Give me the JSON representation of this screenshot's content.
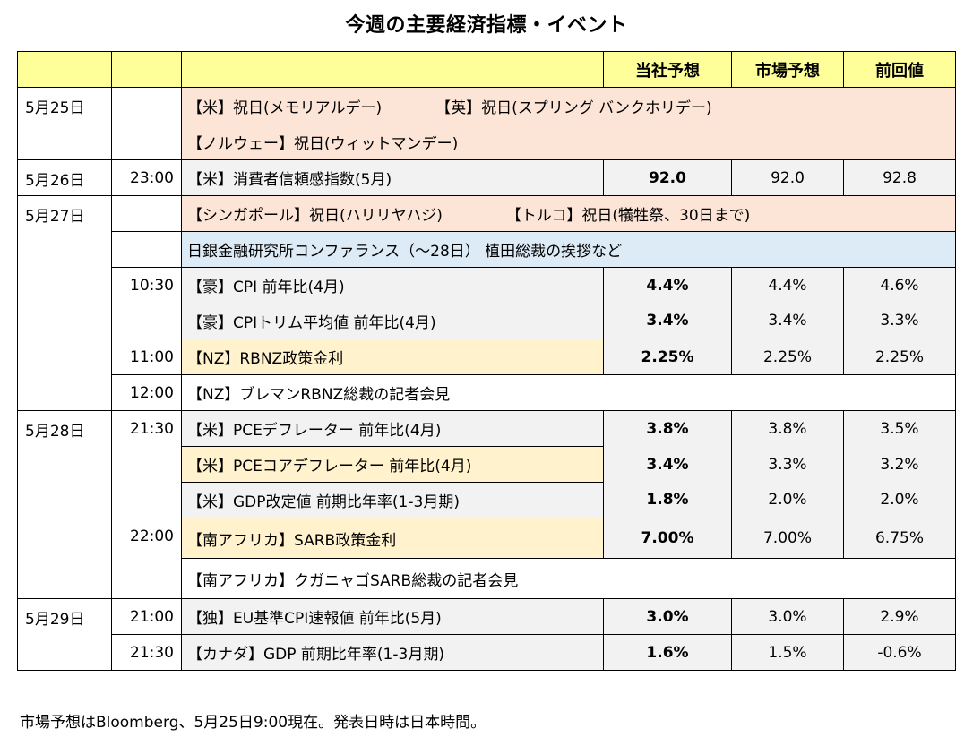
{
  "title": "今週の主要経済指標・イベント",
  "headers": [
    "",
    "",
    "",
    "当社予想",
    "市場予想",
    "前回値"
  ],
  "rows": [
    {
      "date": "5月25日",
      "time": "",
      "event": "【米】祝日(メモリアルデー)",
      "event2": "【英】祝日(スプリング バンクホリデー)",
      "event3": "【ノルウェー】祝日(ウィットマンデー)",
      "ours": "",
      "market": "",
      "prev": ""
    },
    {
      "date": "5月26日",
      "time": "23:00",
      "event": "【米】消費者信頼感指数(5月)",
      "ours": "92.0",
      "market": "92.0",
      "prev": "92.8"
    },
    {
      "date": "5月27日",
      "time": "",
      "event": "【シンガポール】祝日(ハリリヤハジ)",
      "event2": "【トルコ】祝日(犠牲祭、30日まで)"
    },
    {
      "date": "",
      "time": "",
      "event": "日銀金融研究所コンファランス（～28日） 植田総裁の挨拶など"
    },
    {
      "date": "",
      "time": "10:30",
      "event": "【豪】CPI 前年比(4月)",
      "ours": "4.4%",
      "market": "4.4%",
      "prev": "4.6%"
    },
    {
      "date": "",
      "time": "",
      "event": "【豪】CPIトリム平均値 前年比(4月)",
      "ours": "3.4%",
      "market": "3.4%",
      "prev": "3.3%"
    },
    {
      "date": "",
      "time": "11:00",
      "event": "【NZ】RBNZ政策金利",
      "ours": "2.25%",
      "market": "2.25%",
      "prev": "2.25%"
    },
    {
      "date": "",
      "time": "12:00",
      "event": "【NZ】ブレマンRBNZ総裁の記者会見"
    },
    {
      "date": "5月28日",
      "time": "21:30",
      "event": "【米】PCEデフレーター 前年比(4月)",
      "ours": "3.8%",
      "market": "3.8%",
      "prev": "3.5%"
    },
    {
      "date": "",
      "time": "",
      "event": "【米】PCEコアデフレーター 前年比(4月)",
      "ours": "3.4%",
      "market": "3.3%",
      "prev": "3.2%"
    },
    {
      "date": "",
      "time": "",
      "event": "【米】GDP改定値 前期比年率(1-3月期)",
      "ours": "1.8%",
      "market": "2.0%",
      "prev": "2.0%"
    },
    {
      "date": "",
      "time": "22:00",
      "event": "【南アフリカ】SARB政策金利",
      "ours": "7.00%",
      "market": "7.00%",
      "prev": "6.75%"
    },
    {
      "date": "",
      "time": "",
      "event": "【南アフリカ】クガニャゴSARB総裁の記者会見"
    },
    {
      "date": "5月29日",
      "time": "21:00",
      "event": "【独】EU基準CPI速報値 前年比(5月)",
      "ours": "3.0%",
      "market": "3.0%",
      "prev": "2.9%"
    },
    {
      "date": "",
      "time": "21:30",
      "event": "【カナダ】GDP 前期比年率(1-3月期)",
      "ours": "1.6%",
      "market": "1.5%",
      "prev": "-0.6%"
    }
  ],
  "footnote": "市場予想はBloomberg、5月25日9:00現在。発表日時は日本時間。",
  "colors": {
    "header": "#ffff99",
    "holiday": "#fce4d6",
    "indicator": "#f2f2f2",
    "boj": "#ddebf7",
    "policy_rate": "#fff2cc"
  }
}
